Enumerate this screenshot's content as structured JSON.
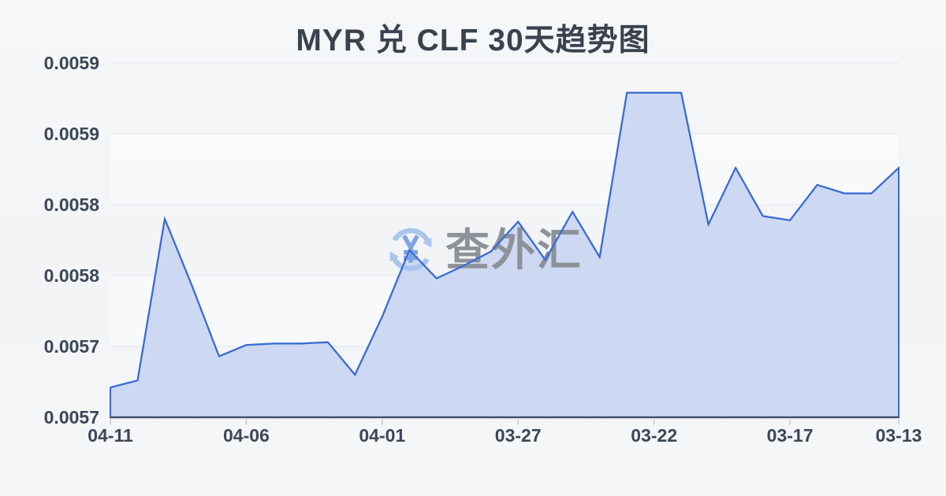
{
  "watermark": {
    "text": "查外汇",
    "icon": "currency-exchange-refresh-icon",
    "icon_arrow_color": "#aac5ed",
    "yuan_symbol_color": "#7da4e0",
    "text_color": "#8d9299"
  },
  "chart_data": {
    "type": "area",
    "title": "MYR 兑 CLF 30天趋势图",
    "categories": [
      "04-11",
      "04-10",
      "04-09",
      "04-08",
      "04-07",
      "04-06",
      "04-05",
      "04-04",
      "04-03",
      "04-02",
      "04-01",
      "03-31",
      "03-30",
      "03-29",
      "03-28",
      "03-27",
      "03-26",
      "03-25",
      "03-24",
      "03-23",
      "03-22",
      "03-21",
      "03-20",
      "03-19",
      "03-18",
      "03-17",
      "03-16",
      "03-15",
      "03-14",
      "03-13"
    ],
    "values": [
      0.005671,
      0.005676,
      0.00579,
      0.005743,
      0.005693,
      0.005701,
      0.005702,
      0.005702,
      0.005703,
      0.00568,
      0.005721,
      0.005768,
      0.005748,
      0.005757,
      0.005767,
      0.005788,
      0.005761,
      0.005795,
      0.005763,
      0.005879,
      0.005879,
      0.005879,
      0.005786,
      0.005826,
      0.005792,
      0.005789,
      0.005814,
      0.005808,
      0.005808,
      0.005826
    ],
    "x_tick_indices": [
      0,
      5,
      10,
      15,
      20,
      25,
      29
    ],
    "x_tick_labels": [
      "04-11",
      "04-06",
      "04-01",
      "03-27",
      "03-22",
      "03-17",
      "03-13"
    ],
    "y_tick_labels": [
      "0.0057",
      "0.0057",
      "0.0058",
      "0.0058",
      "0.0059",
      "0.0059"
    ],
    "ylim": [
      0.00565,
      0.0059
    ],
    "y_tick_interval": 5e-05,
    "grid": true,
    "legend": "none",
    "line_color": "#3a6bd5",
    "fill_color": "#cdd8f2",
    "axis_line_color": "#415070",
    "tick_color": "#c7ccd4",
    "grid_color": "#e3e6eb",
    "label_color": "#3c4657",
    "title_color": "#39424e",
    "background_color": "#f4f5f7"
  }
}
